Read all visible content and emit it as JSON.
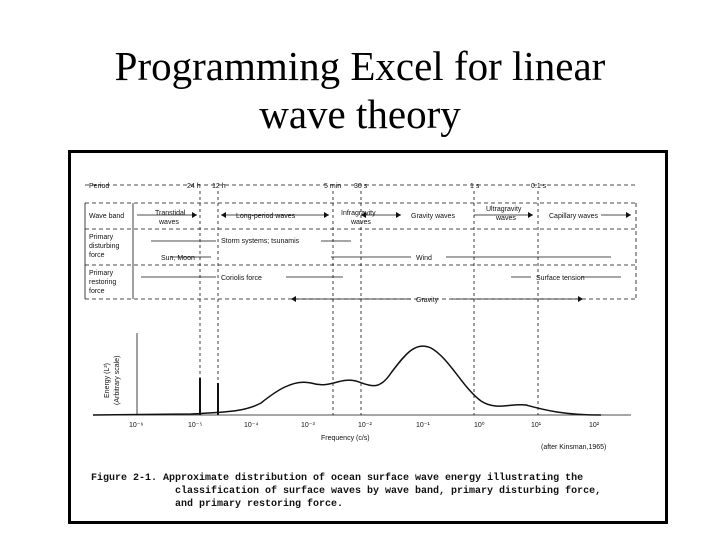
{
  "slide": {
    "title_line1": "Programming Excel for linear",
    "title_line2": "wave theory"
  },
  "figure": {
    "period_label": "Period",
    "period_marks": [
      "24 h",
      "12 h",
      "5 min",
      "30 s",
      "1 s",
      "0.1 s"
    ],
    "rows": [
      {
        "label1": "Wave band",
        "label2": "",
        "label3": ""
      },
      {
        "label1": "Primary",
        "label2": "disturbing",
        "label3": "force"
      },
      {
        "label1": "Primary",
        "label2": "restoring",
        "label3": "force"
      }
    ],
    "bands": {
      "transtidal_1": "Transtidal",
      "transtidal_2": "waves",
      "long_period": "Long-period waves",
      "infragravity_1": "Infragravity",
      "infragravity_2": "waves",
      "gravity": "Gravity waves",
      "ultragravity_1": "Ultragravity",
      "ultragravity_2": "waves",
      "capillary": "Capillary waves"
    },
    "disturbing": {
      "storm": "Storm systems; tsunamis",
      "sun_moon": "Sun, Moon",
      "wind": "Wind"
    },
    "restoring": {
      "coriolis": "Coriolis force",
      "surface_tension": "Surface tension",
      "gravity": "Gravity"
    },
    "y_axis_1": "Energy (L²)",
    "y_axis_2": "(Arbitrary scale)",
    "x_ticks": [
      "10⁻⁶",
      "10⁻⁵",
      "10⁻⁴",
      "10⁻³",
      "10⁻²",
      "10⁻¹",
      "10⁰",
      "10¹",
      "10²"
    ],
    "x_axis_label": "Frequency (c/s)",
    "source": "(after Kinsman,1965)",
    "caption_1": "Figure 2-1.  Approximate distribution of ocean surface wave energy illustrating the",
    "caption_2": "classification of surface waves by wave band, primary disturbing force,",
    "caption_3": "and primary restoring force."
  }
}
